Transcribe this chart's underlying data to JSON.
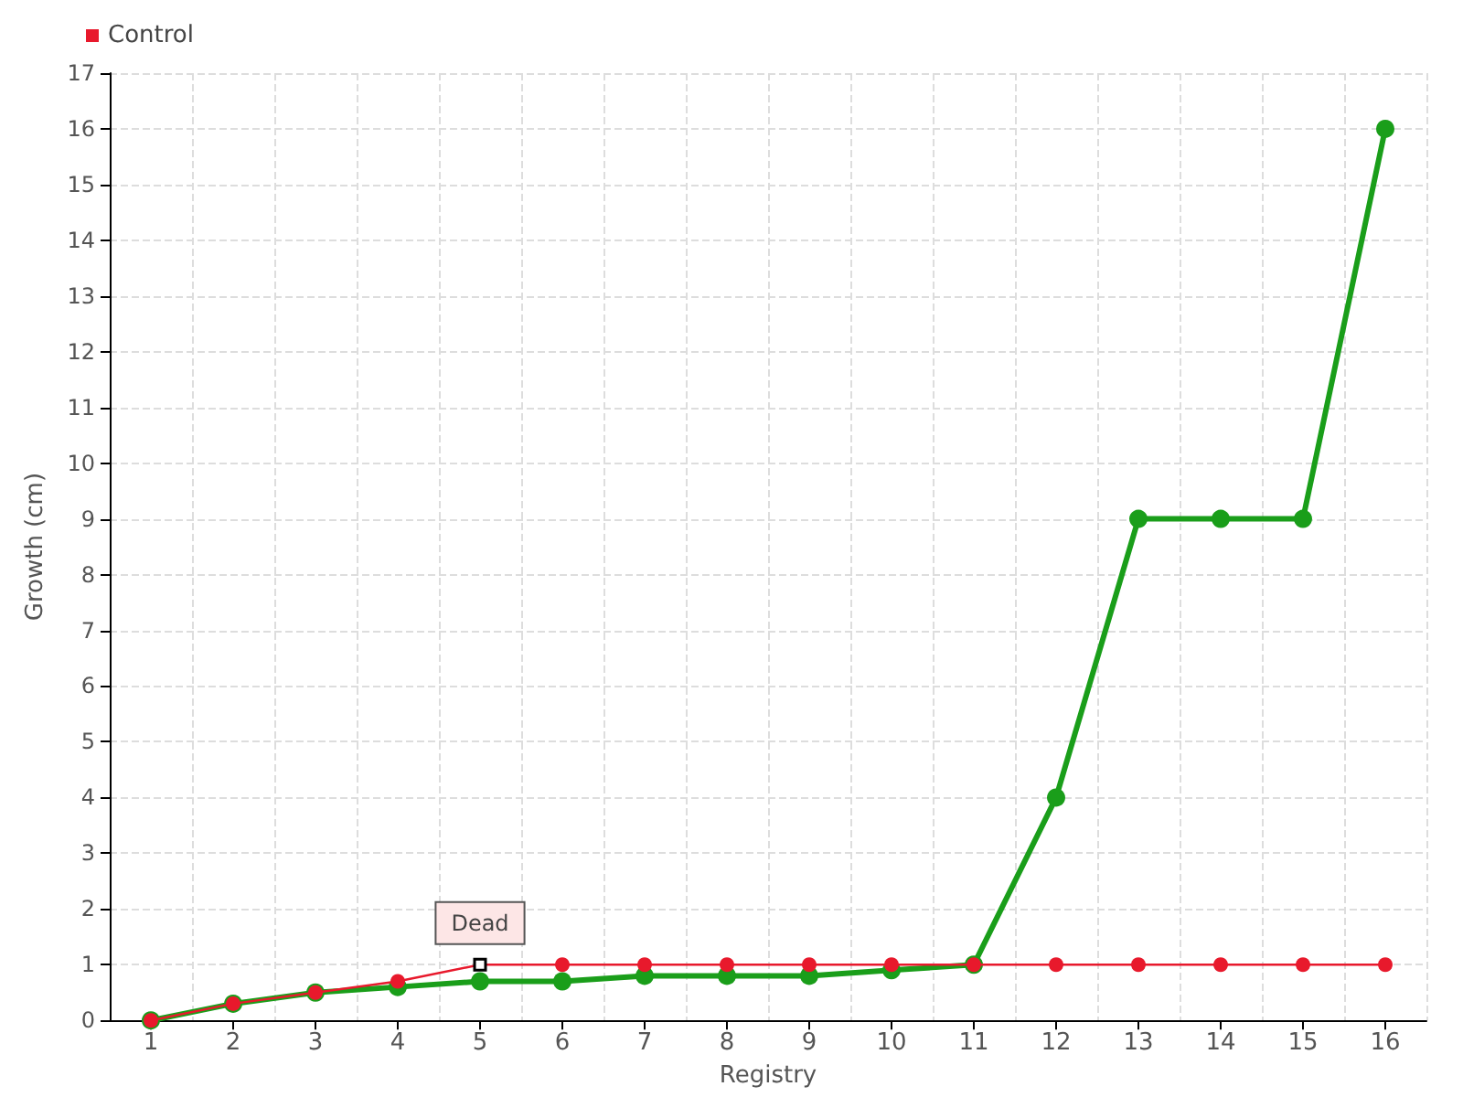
{
  "chart_data": {
    "type": "line",
    "xlabel": "Registry",
    "ylabel": "Growth (cm)",
    "categories": [
      "1",
      "2",
      "3",
      "4",
      "5",
      "6",
      "7",
      "8",
      "9",
      "10",
      "11",
      "12",
      "13",
      "14",
      "15",
      "16"
    ],
    "series": [
      {
        "color": "#1a9e1a",
        "values": [
          0,
          0.3,
          0.5,
          0.6,
          0.7,
          0.7,
          0.8,
          0.8,
          0.8,
          0.9,
          1,
          4,
          9,
          9,
          9,
          16
        ]
      },
      {
        "name": "Control",
        "color": "#e8192c",
        "values": [
          0,
          0.3,
          0.5,
          0.7,
          1,
          1,
          1,
          1,
          1,
          1,
          1,
          1,
          1,
          1,
          1,
          1
        ]
      }
    ],
    "ylim": [
      0,
      17
    ],
    "yticks": [
      0,
      1,
      2,
      3,
      4,
      5,
      6,
      7,
      8,
      9,
      10,
      11,
      12,
      13,
      14,
      15,
      16,
      17
    ],
    "grid": true,
    "legend": "top left",
    "marker": "circle",
    "line_style": "solid",
    "annotations": [
      {
        "text": "Dead",
        "x": "5",
        "y": 1
      }
    ]
  }
}
